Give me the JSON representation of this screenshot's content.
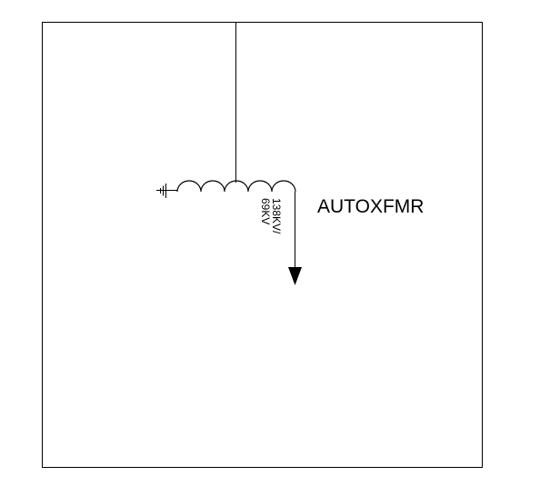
{
  "diagram": {
    "device_label": "AUTOXFMR",
    "rating_line_1": "138KV/",
    "rating_line_2": "69KV"
  },
  "colors": {
    "line": "#000000",
    "background": "#ffffff"
  },
  "icons": {
    "ground": "ground-icon",
    "winding": "autotransformer-winding-icon",
    "arrow": "arrow-down-icon"
  }
}
